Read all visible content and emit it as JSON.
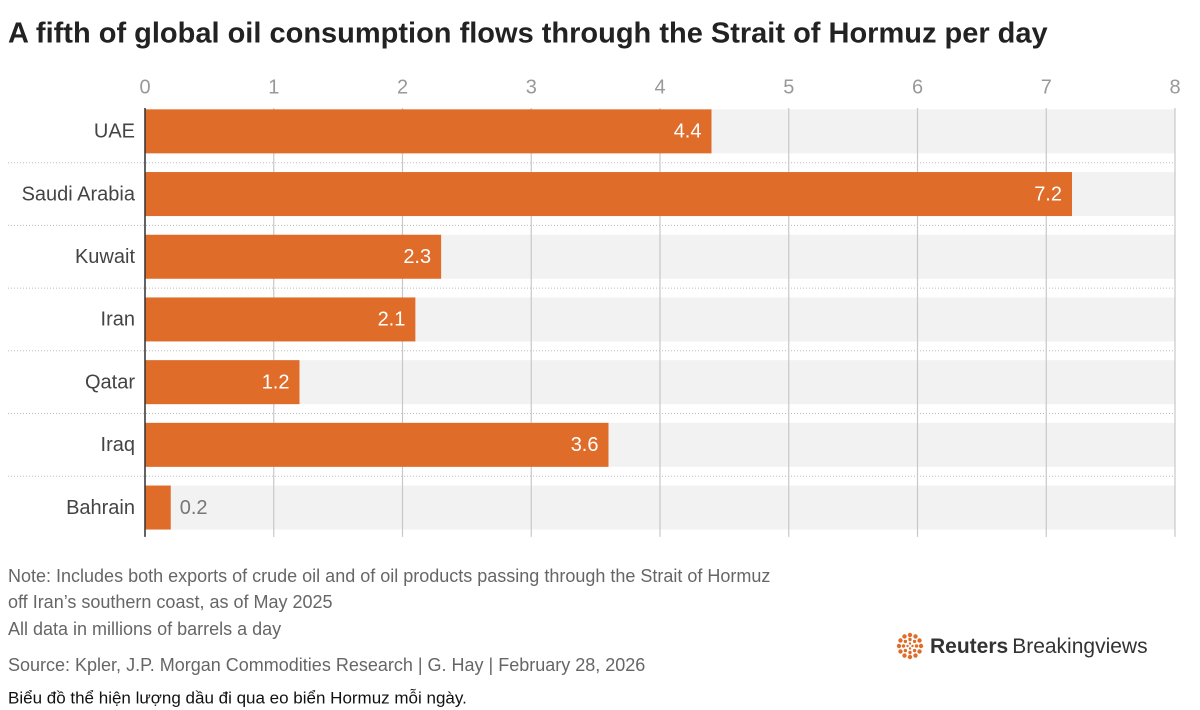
{
  "chart_data": {
    "type": "bar",
    "orientation": "horizontal",
    "title": "A fifth of global oil consumption flows through the Strait of Hormuz per day",
    "categories": [
      "UAE",
      "Saudi Arabia",
      "Kuwait",
      "Iran",
      "Qatar",
      "Iraq",
      "Bahrain"
    ],
    "values": [
      4.4,
      7.2,
      2.3,
      2.1,
      1.2,
      3.6,
      0.2
    ],
    "color": "#e06c2a",
    "xlim": [
      0,
      8
    ],
    "xticks": [
      0,
      1,
      2,
      3,
      4,
      5,
      6,
      7,
      8
    ],
    "grid": true,
    "notes": [
      "Note: Includes both exports of crude oil and of oil products passing through the Strait of Hormuz",
      "off Iran’s southern coast, as of May 2025",
      "All data in millions of barrels a day"
    ],
    "source": "Source: Kpler, J.P. Morgan Commodities Research | G. Hay | February 28, 2026",
    "caption": "Biểu đồ thể hiện lượng dầu đi qua eo biển Hormuz mỗi ngày.",
    "logo": {
      "brand": "Reuters",
      "product": "Breakingviews"
    }
  }
}
